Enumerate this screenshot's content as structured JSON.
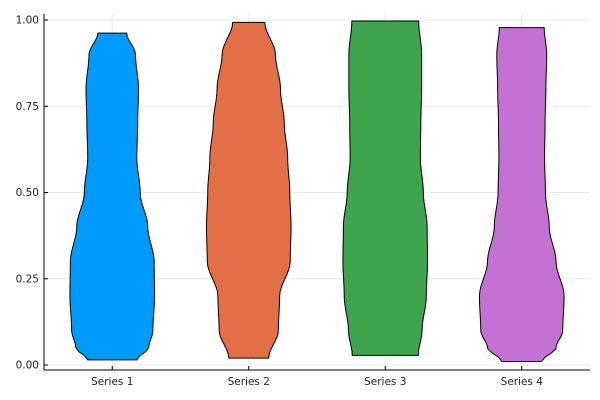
{
  "chart_data": {
    "type": "violin",
    "grid": true,
    "legend": "none",
    "ylim": [
      0.0,
      1.0
    ],
    "yticks": [
      "0.00",
      "0.25",
      "0.50",
      "0.75",
      "1.00"
    ],
    "yticks_values": [
      0.0,
      0.25,
      0.5,
      0.75,
      1.0
    ],
    "categories": [
      "Series 1",
      "Series 2",
      "Series 3",
      "Series 4"
    ],
    "series": [
      {
        "color": "#009AFA",
        "min": 0.015,
        "max": 0.962,
        "profile": [
          [
            0.015,
            0.58
          ],
          [
            0.05,
            0.86
          ],
          [
            0.1,
            0.96
          ],
          [
            0.2,
            1.0
          ],
          [
            0.3,
            0.99
          ],
          [
            0.4,
            0.84
          ],
          [
            0.5,
            0.66
          ],
          [
            0.6,
            0.58
          ],
          [
            0.7,
            0.6
          ],
          [
            0.8,
            0.62
          ],
          [
            0.9,
            0.55
          ],
          [
            0.962,
            0.34
          ]
        ]
      },
      {
        "color": "#E36F47",
        "min": 0.02,
        "max": 0.993,
        "profile": [
          [
            0.02,
            0.47
          ],
          [
            0.1,
            0.7
          ],
          [
            0.2,
            0.73
          ],
          [
            0.3,
            0.98
          ],
          [
            0.4,
            1.0
          ],
          [
            0.5,
            0.97
          ],
          [
            0.6,
            0.92
          ],
          [
            0.7,
            0.84
          ],
          [
            0.8,
            0.75
          ],
          [
            0.9,
            0.63
          ],
          [
            0.993,
            0.38
          ]
        ]
      },
      {
        "color": "#3EA44E",
        "min": 0.028,
        "max": 0.997,
        "profile": [
          [
            0.028,
            0.78
          ],
          [
            0.1,
            0.87
          ],
          [
            0.2,
            0.97
          ],
          [
            0.3,
            1.0
          ],
          [
            0.4,
            0.99
          ],
          [
            0.5,
            0.9
          ],
          [
            0.6,
            0.83
          ],
          [
            0.7,
            0.84
          ],
          [
            0.8,
            0.86
          ],
          [
            0.9,
            0.86
          ],
          [
            0.997,
            0.79
          ]
        ]
      },
      {
        "color": "#C371D2",
        "min": 0.01,
        "max": 0.978,
        "profile": [
          [
            0.01,
            0.47
          ],
          [
            0.05,
            0.81
          ],
          [
            0.1,
            0.97
          ],
          [
            0.2,
            1.0
          ],
          [
            0.3,
            0.81
          ],
          [
            0.4,
            0.65
          ],
          [
            0.5,
            0.56
          ],
          [
            0.6,
            0.54
          ],
          [
            0.7,
            0.55
          ],
          [
            0.8,
            0.57
          ],
          [
            0.9,
            0.59
          ],
          [
            0.978,
            0.53
          ]
        ]
      }
    ]
  }
}
